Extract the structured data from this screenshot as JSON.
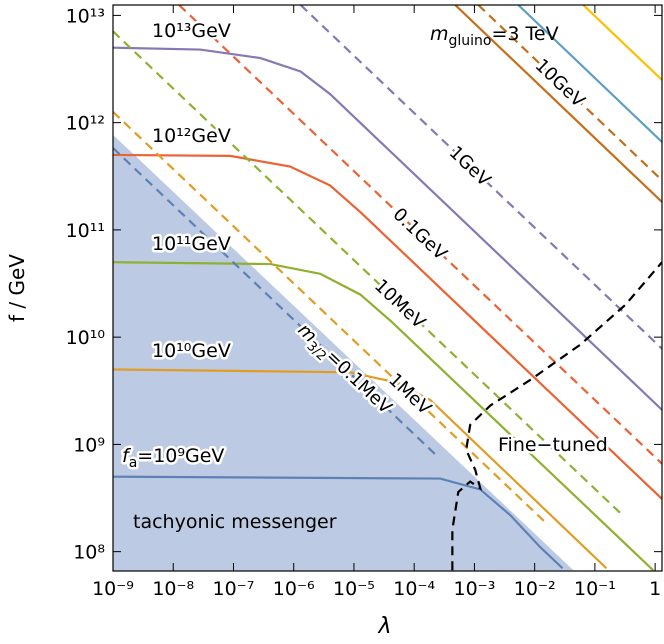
{
  "chart_data": {
    "type": "line",
    "x_label": "λ",
    "y_label": "f / GeV",
    "log_x": true,
    "log_y": true,
    "xlim": [
      1e-09,
      1.3
    ],
    "ylim": [
      66000000.0,
      12500000000000.0
    ],
    "xticks": [
      {
        "value": 1e-09,
        "label": "10⁻⁹"
      },
      {
        "value": 1e-08,
        "label": "10⁻⁸"
      },
      {
        "value": 1e-07,
        "label": "10⁻⁷"
      },
      {
        "value": 1e-06,
        "label": "10⁻⁶"
      },
      {
        "value": 1e-05,
        "label": "10⁻⁵"
      },
      {
        "value": 0.0001,
        "label": "10⁻⁴"
      },
      {
        "value": 0.001,
        "label": "10⁻³"
      },
      {
        "value": 0.01,
        "label": "10⁻²"
      },
      {
        "value": 0.1,
        "label": "10⁻¹"
      },
      1
    ],
    "yticks": [
      {
        "value": 100000000.0,
        "label": "10⁸"
      },
      {
        "value": 1000000000.0,
        "label": "10⁹"
      },
      {
        "value": 10000000000.0,
        "label": "10¹⁰"
      },
      {
        "value": 100000000000.0,
        "label": "10¹¹"
      },
      {
        "value": 1000000000000.0,
        "label": "10¹²"
      },
      {
        "value": 10000000000000.0,
        "label": "10¹³"
      }
    ],
    "region": {
      "color": "#bccbe3",
      "x": [
        1e-09,
        0.044
      ],
      "values": [
        770000000000.0,
        67000000.0
      ]
    },
    "series": [
      {
        "name": "10¹³GeV",
        "color": "#8778B3",
        "dash": false,
        "x": [
          1e-09,
          2.8e-08,
          2.8e-07,
          1.3e-06,
          4e-06,
          1.3
        ],
        "values": [
          5000000000000.0,
          4800000000000.0,
          4000000000000.0,
          3000000000000.0,
          1850000000000.0,
          2100000000.0
        ]
      },
      {
        "name": "10¹²GeV",
        "color": "#EB6235",
        "dash": false,
        "x": [
          1e-09,
          8.8e-08,
          8.7e-07,
          4e-06,
          1.27e-05,
          1.3
        ],
        "values": [
          500000000000.0,
          490000000000.0,
          390000000000.0,
          260000000000.0,
          147000000000.0,
          310000000.0
        ]
      },
      {
        "name": "10¹¹GeV",
        "color": "#8FB032",
        "dash": false,
        "x": [
          1e-09,
          4.1e-07,
          2.75e-06,
          1.27e-05,
          4e-05,
          0.93
        ],
        "values": [
          50000000000.0,
          48000000000.0,
          39000000000.0,
          25000000000.0,
          14300000000.0,
          67000000.0
        ]
      },
      {
        "name": "10¹⁰GeV",
        "color": "#E19C24",
        "dash": false,
        "x": [
          1e-09,
          8.7e-06,
          4.8e-05,
          0.000184,
          0.155
        ],
        "values": [
          5000000000.0,
          4700000000.0,
          3800000000.0,
          2600000000.0,
          70000000.0
        ]
      },
      {
        "color": "#5E81B5",
        "dash": false,
        "x": [
          1e-09,
          0.00027,
          0.00125,
          0.0039,
          0.0124,
          0.029
        ],
        "values": [
          500000000.0,
          480000000.0,
          380000000.0,
          220000000.0,
          110000000.0,
          70000000.0
        ]
      },
      {
        "color": "#C56E1A",
        "dash": false,
        "x": [
          0.00048,
          1.3
        ],
        "values": [
          12500000000000.0,
          182000000000.0
        ]
      },
      {
        "color": "#5D9EC7",
        "dash": false,
        "x": [
          0.00535,
          1.3
        ],
        "values": [
          12500000000000.0,
          660000000000.0
        ]
      },
      {
        "color": "#FFBF00",
        "dash": false,
        "x": [
          0.064,
          1.3
        ],
        "values": [
          12500000000000.0,
          2500000000000.0
        ]
      },
      {
        "name": "10GeV",
        "color": "#C56E1A",
        "dash": true,
        "x": [
          0.00116,
          1.3
        ],
        "values": [
          12500000000000.0,
          290000000000.0
        ]
      },
      {
        "name": "1GeV",
        "color": "#8778B3",
        "dash": true,
        "x": [
          1.3e-06,
          1.3
        ],
        "values": [
          12500000000000.0,
          7800000000.0
        ]
      },
      {
        "name": "0.1GeV",
        "color": "#EB6235",
        "dash": true,
        "x": [
          1.25e-08,
          1.3
        ],
        "values": [
          12500000000000.0,
          660000000.0
        ]
      },
      {
        "name": "10MeV",
        "color": "#8FB032",
        "dash": true,
        "x": [
          1e-09,
          0.285
        ],
        "values": [
          7100000000000.0,
          220000000.0
        ]
      },
      {
        "name": "1MeV",
        "color": "#E19C24",
        "dash": true,
        "x": [
          1e-09,
          0.0168
        ],
        "values": [
          1260000000000.0,
          177000000.0
        ]
      },
      {
        "color": "#5E81B5",
        "dash": true,
        "x": [
          1e-09,
          0.000223
        ],
        "values": [
          580000000000.0,
          810000000.0
        ]
      },
      {
        "color": "#000000",
        "dash": true,
        "x": [
          0.00043,
          0.00043,
          0.00054,
          0.00085,
          0.00125,
          0.00103,
          0.00073,
          0.00085,
          0.00183,
          0.0085,
          0.057,
          0.32,
          1.3
        ],
        "values": [
          67000000.0,
          160000000.0,
          360000000.0,
          450000000.0,
          390000000.0,
          580000000.0,
          890000000.0,
          1520000000.0,
          2300000000.0,
          4000000000.0,
          8500000000.0,
          20000000000.0,
          50000000000.0
        ]
      }
    ],
    "annotations": {
      "gluino": {
        "symbol": "m",
        "subscript": "gluino",
        "rest": "=3 TeV"
      },
      "fa": {
        "symbol": "f",
        "subscript": "a",
        "rest": "=10⁹GeV"
      },
      "gravitino": {
        "symbol": "m",
        "subscript": "3/2",
        "rest": "=0.1MeV"
      },
      "tachyonic": "tachyonic messenger",
      "fine_tuned": "Fine−tuned"
    }
  }
}
